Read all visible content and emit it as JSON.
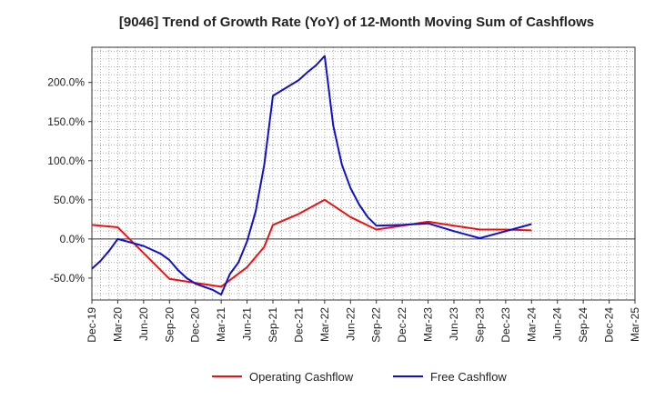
{
  "chart_data": {
    "type": "line",
    "title": "[9046]  Trend of Growth Rate (YoY) of 12-Month Moving Sum of Cashflows",
    "xlabel": "",
    "ylabel": "",
    "categories": [
      "Dec-19",
      "Mar-20",
      "Jun-20",
      "Sep-20",
      "Dec-20",
      "Mar-21",
      "Jun-21",
      "Sep-21",
      "Dec-21",
      "Mar-22",
      "Jun-22",
      "Sep-22",
      "Dec-22",
      "Mar-23",
      "Jun-23",
      "Sep-23",
      "Dec-23",
      "Mar-24",
      "Jun-24",
      "Sep-24",
      "Dec-24",
      "Mar-25"
    ],
    "x_month_range": [
      "Dec-19",
      "Mar-25"
    ],
    "ylim": [
      -78,
      245
    ],
    "yticks": [
      -50,
      0,
      50,
      100,
      150,
      200
    ],
    "ytick_labels": [
      "-50.0%",
      "0.0%",
      "50.0%",
      "100.0%",
      "150.0%",
      "200.0%"
    ],
    "grid": true,
    "legend_position": "bottom-center",
    "series": [
      {
        "name": "Operating Cashflow",
        "color": "#ee1111",
        "points": [
          [
            "Dec-19",
            18
          ],
          [
            "Mar-20",
            15
          ],
          [
            "Jun-20",
            -18
          ],
          [
            "Sep-20",
            -51
          ],
          [
            "Dec-20",
            -56
          ],
          [
            "Mar-21",
            -61
          ],
          [
            "Jun-21",
            -36
          ],
          [
            "Aug-21",
            -10
          ],
          [
            "Sep-21",
            18
          ],
          [
            "Dec-21",
            32
          ],
          [
            "Mar-22",
            50
          ],
          [
            "Jun-22",
            28
          ],
          [
            "Sep-22",
            12
          ],
          [
            "Dec-22",
            17
          ],
          [
            "Mar-23",
            22
          ],
          [
            "Jun-23",
            17
          ],
          [
            "Sep-23",
            12
          ],
          [
            "Dec-23",
            12
          ],
          [
            "Mar-24",
            11
          ]
        ]
      },
      {
        "name": "Free Cashflow",
        "color": "#1111cc",
        "points": [
          [
            "Dec-19",
            -38
          ],
          [
            "Jan-20",
            -28
          ],
          [
            "Feb-20",
            -15
          ],
          [
            "Mar-20",
            0
          ],
          [
            "Apr-20",
            -3
          ],
          [
            "May-20",
            -6
          ],
          [
            "Jun-20",
            -9
          ],
          [
            "Jul-20",
            -14
          ],
          [
            "Aug-20",
            -19
          ],
          [
            "Sep-20",
            -27
          ],
          [
            "Oct-20",
            -40
          ],
          [
            "Nov-20",
            -50
          ],
          [
            "Dec-20",
            -57
          ],
          [
            "Jan-21",
            -61
          ],
          [
            "Feb-21",
            -65
          ],
          [
            "Mar-21",
            -71
          ],
          [
            "Apr-21",
            -45
          ],
          [
            "May-21",
            -30
          ],
          [
            "Jun-21",
            -3
          ],
          [
            "Jul-21",
            35
          ],
          [
            "Aug-21",
            95
          ],
          [
            "Sep-21",
            183
          ],
          [
            "Dec-21",
            203
          ],
          [
            "Jan-22",
            213
          ],
          [
            "Feb-22",
            222
          ],
          [
            "Mar-22",
            234
          ],
          [
            "Apr-22",
            145
          ],
          [
            "May-22",
            95
          ],
          [
            "Jun-22",
            65
          ],
          [
            "Jul-22",
            44
          ],
          [
            "Aug-22",
            28
          ],
          [
            "Sep-22",
            17
          ],
          [
            "Dec-22",
            18
          ],
          [
            "Mar-23",
            20
          ],
          [
            "Jun-23",
            10
          ],
          [
            "Sep-23",
            1
          ],
          [
            "Dec-23",
            10
          ],
          [
            "Mar-24",
            19
          ]
        ]
      }
    ]
  }
}
